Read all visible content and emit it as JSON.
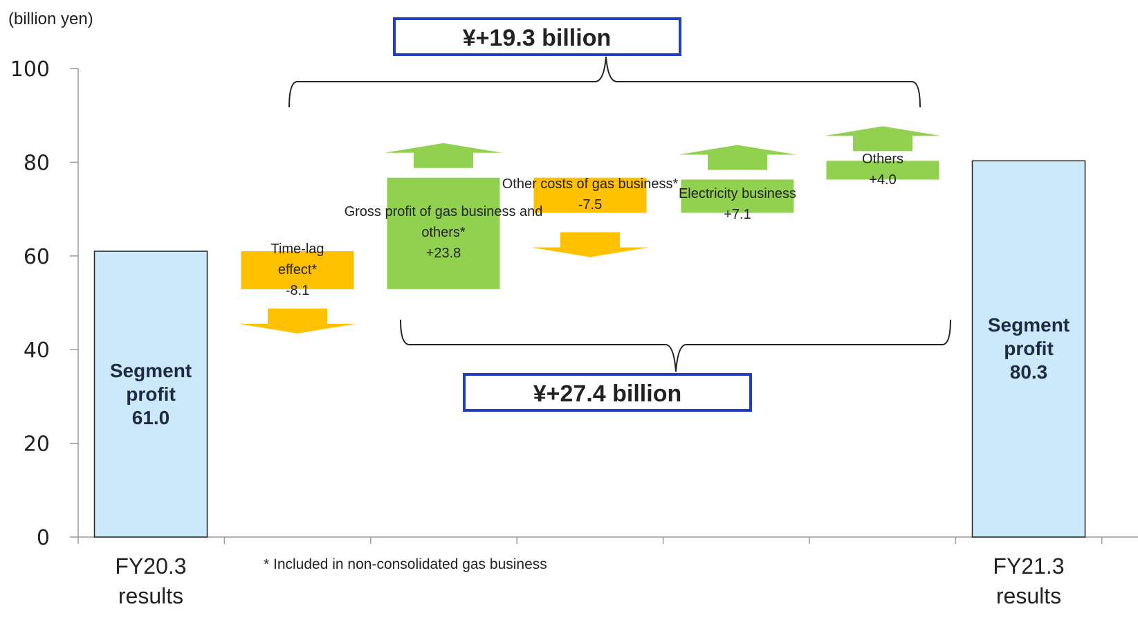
{
  "chart_data": {
    "type": "waterfall",
    "unit_label": "(billion yen)",
    "ylim": [
      0,
      100
    ],
    "y_ticks": [
      "0",
      "20",
      "40",
      "60",
      "80",
      "100"
    ],
    "categories": [
      "FY20.3 results",
      "",
      "",
      "",
      "",
      "",
      "FY21.3 results"
    ],
    "category_labels": [
      [
        "FY20.3",
        "results"
      ],
      [
        "FY21.3",
        "results"
      ]
    ],
    "bars": [
      {
        "kind": "total",
        "value": 61.0,
        "label_lines": [
          "Segment",
          "profit",
          "61.0"
        ],
        "color": "#cce9fb"
      },
      {
        "kind": "delta",
        "value": -8.1,
        "label_lines": [
          "Time-lag",
          "effect*",
          "-8.1"
        ],
        "color": "#ffc000"
      },
      {
        "kind": "delta",
        "value": 23.8,
        "label_lines": [
          "Gross profit of gas business and",
          "others*",
          "+23.8"
        ],
        "color": "#92d050"
      },
      {
        "kind": "delta",
        "value": -7.5,
        "label_lines": [
          "Other costs of gas business*",
          "-7.5"
        ],
        "color": "#ffc000"
      },
      {
        "kind": "delta",
        "value": 7.1,
        "label_lines": [
          "Electricity business",
          "+7.1"
        ],
        "color": "#92d050"
      },
      {
        "kind": "delta",
        "value": 4.0,
        "label_lines": [
          "Others",
          "+4.0"
        ],
        "color": "#92d050"
      },
      {
        "kind": "total",
        "value": 80.3,
        "label_lines": [
          "Segment",
          "profit",
          "80.3"
        ],
        "color": "#cce9fb"
      }
    ],
    "annotations": {
      "top_box": "¥+19.3 billion",
      "bottom_box": "¥+27.4 billion",
      "footnote": "* Included in non-consolidated gas business"
    },
    "colors": {
      "positive": "#92d050",
      "negative": "#ffc000",
      "total": "#cce9fb",
      "box_border": "#1f3fbf"
    }
  }
}
